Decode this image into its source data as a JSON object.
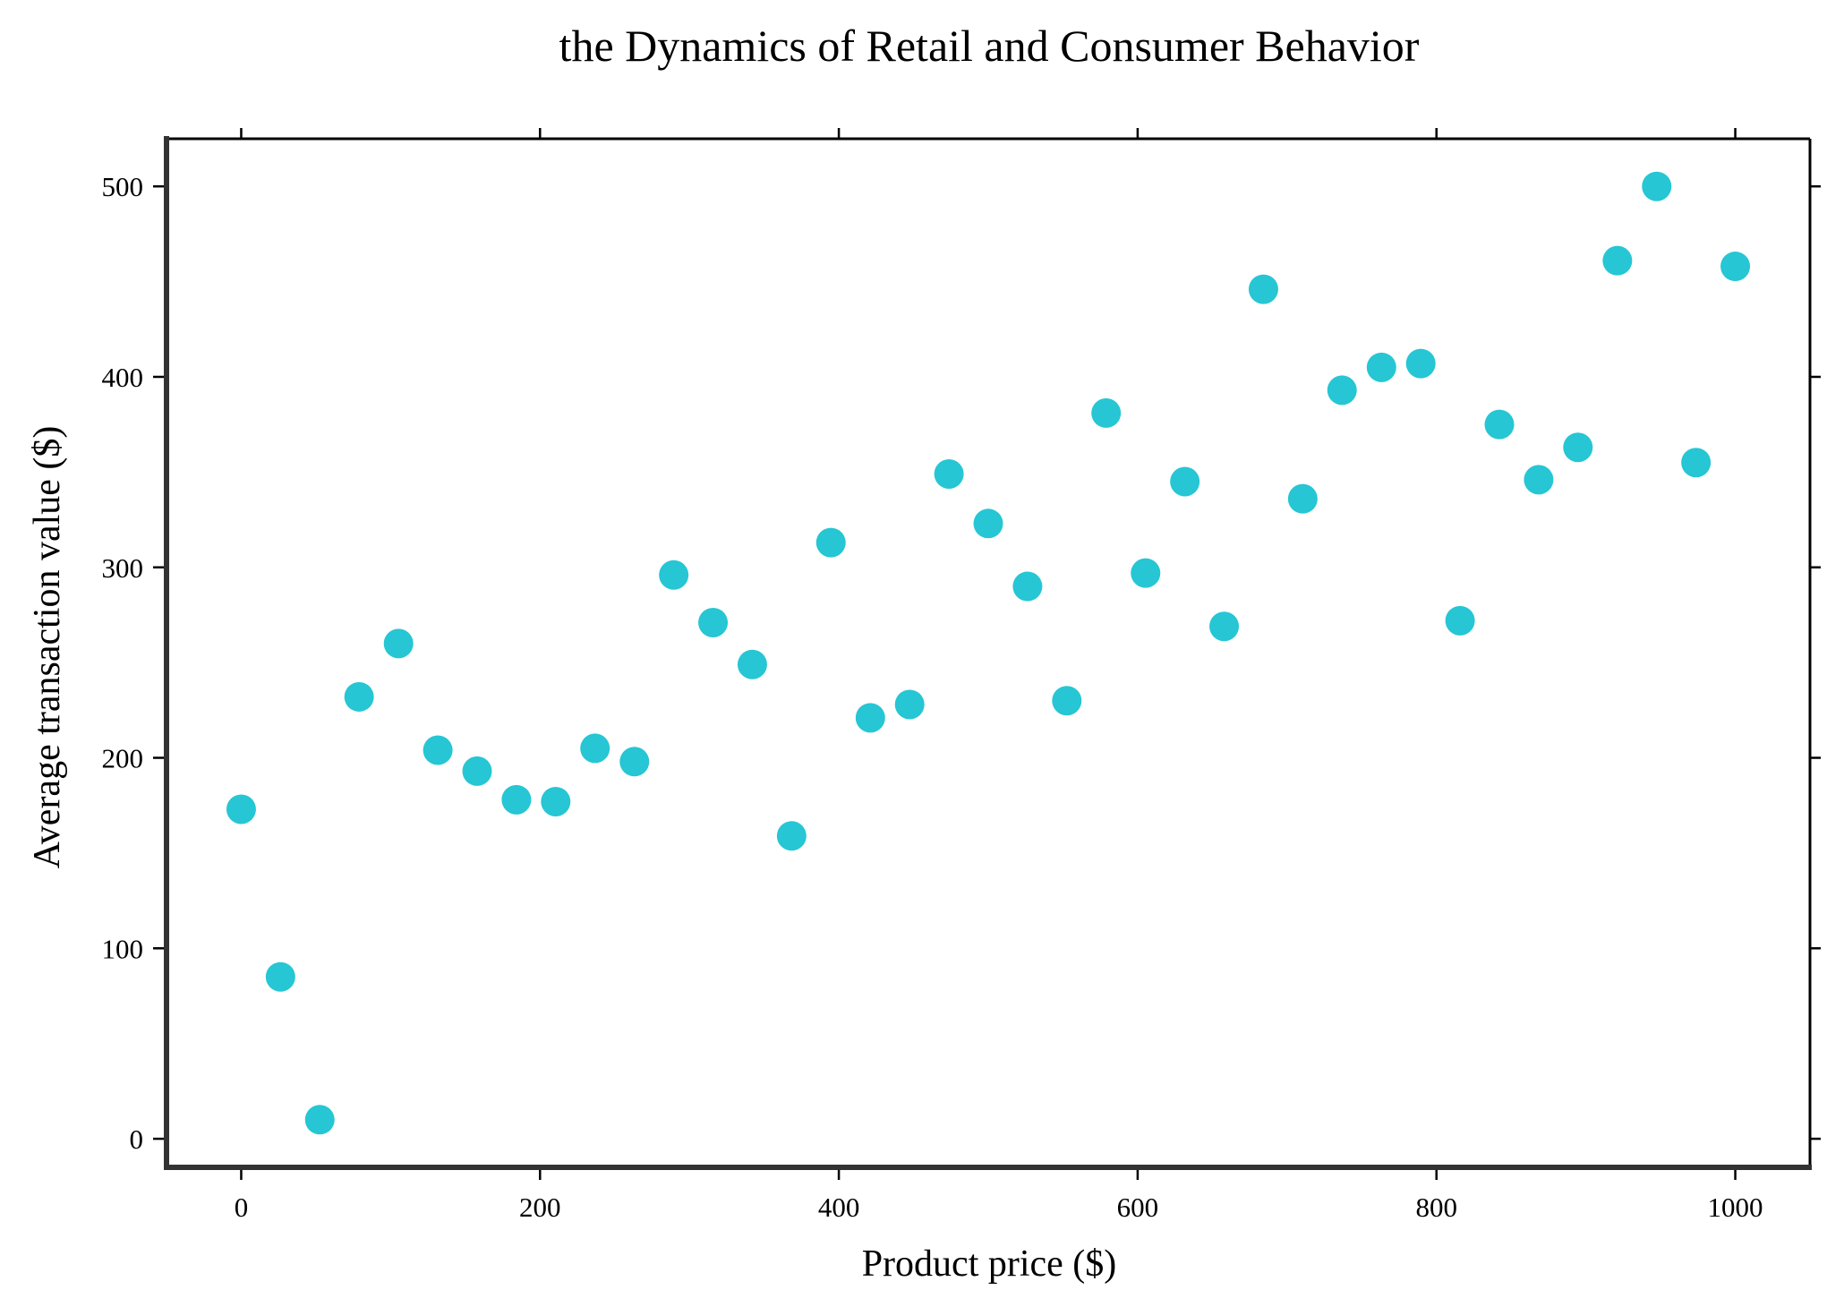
{
  "chart_data": {
    "type": "scatter",
    "title": "the Dynamics of Retail and Consumer Behavior",
    "xlabel": "Product price ($)",
    "ylabel": "Average transaction value ($)",
    "xlim": [
      -50,
      1050
    ],
    "ylim": [
      -15,
      525
    ],
    "x_ticks": [
      0,
      200,
      400,
      600,
      800,
      1000
    ],
    "y_ticks": [
      0,
      100,
      200,
      300,
      400,
      500
    ],
    "grid": false,
    "legend": "none",
    "marker_color": "#26c6d4",
    "series": [
      {
        "x": [
          0,
          26.3,
          52.6,
          78.9,
          105.3,
          131.6,
          157.9,
          184.2,
          210.5,
          236.8,
          263.2,
          289.5,
          315.8,
          342.1,
          368.4,
          394.7,
          421.1,
          447.4,
          473.7,
          500.0,
          526.3,
          552.6,
          578.9,
          605.3,
          631.6,
          657.9,
          684.2,
          710.5,
          736.8,
          763.2,
          789.5,
          815.8,
          842.1,
          868.4,
          894.7,
          921.1,
          947.4,
          973.7,
          1000
        ],
        "y": [
          173,
          85,
          10,
          232,
          260,
          204,
          193,
          178,
          177,
          205,
          198,
          296,
          271,
          249,
          159,
          313,
          221,
          228,
          349,
          323,
          290,
          230,
          381,
          297,
          345,
          269,
          446,
          336,
          393,
          405,
          407,
          272,
          375,
          346,
          363,
          461,
          500,
          355,
          458
        ]
      }
    ]
  }
}
